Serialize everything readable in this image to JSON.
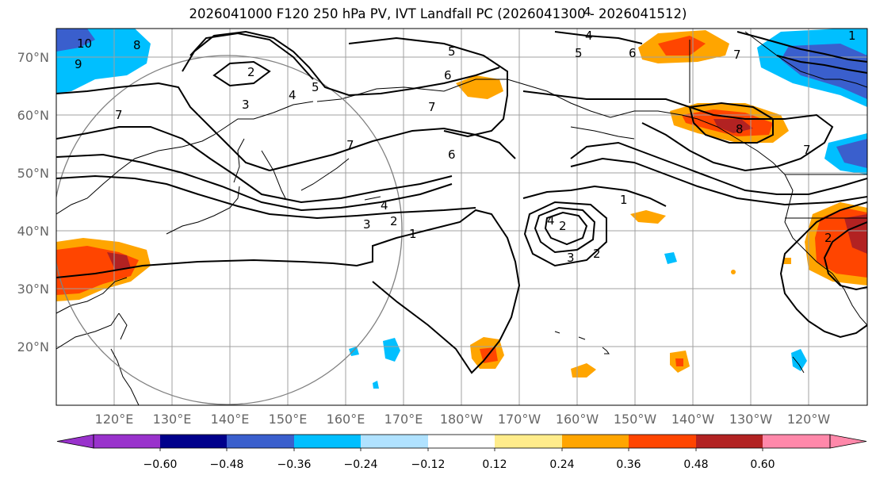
{
  "title": "2026041000 F120 250 hPa PV, IVT Landfall PC (2026041300 - 2026041512)",
  "lat_labels": [
    "70°N",
    "60°N",
    "50°N",
    "40°N",
    "30°N",
    "20°N"
  ],
  "lon_labels": [
    "120°E",
    "130°E",
    "140°E",
    "150°E",
    "160°E",
    "170°E",
    "180°W",
    "170°W",
    "160°W",
    "150°W",
    "140°W",
    "130°W",
    "120°W"
  ],
  "colorbar": {
    "ticks": [
      "−0.60",
      "−0.48",
      "−0.36",
      "−0.24",
      "−0.12",
      "0.12",
      "0.24",
      "0.36",
      "0.48",
      "0.60"
    ],
    "colors": [
      "#9932cc",
      "#00008b",
      "#3a5fcd",
      "#00bfff",
      "#b0e2ff",
      "#ffffff",
      "#ffec8b",
      "#ffa500",
      "#ff4500",
      "#b22222",
      "#ff88aa"
    ]
  },
  "contour_labels": [
    "10",
    "9",
    "8",
    "7",
    "2",
    "3",
    "4",
    "5",
    "5",
    "6",
    "4",
    "7",
    "6",
    "7",
    "1",
    "2",
    "4",
    "4",
    "3",
    "2",
    "1",
    "4",
    "3",
    "2",
    "1",
    "5",
    "7",
    "2",
    "6",
    "7",
    "8"
  ]
}
